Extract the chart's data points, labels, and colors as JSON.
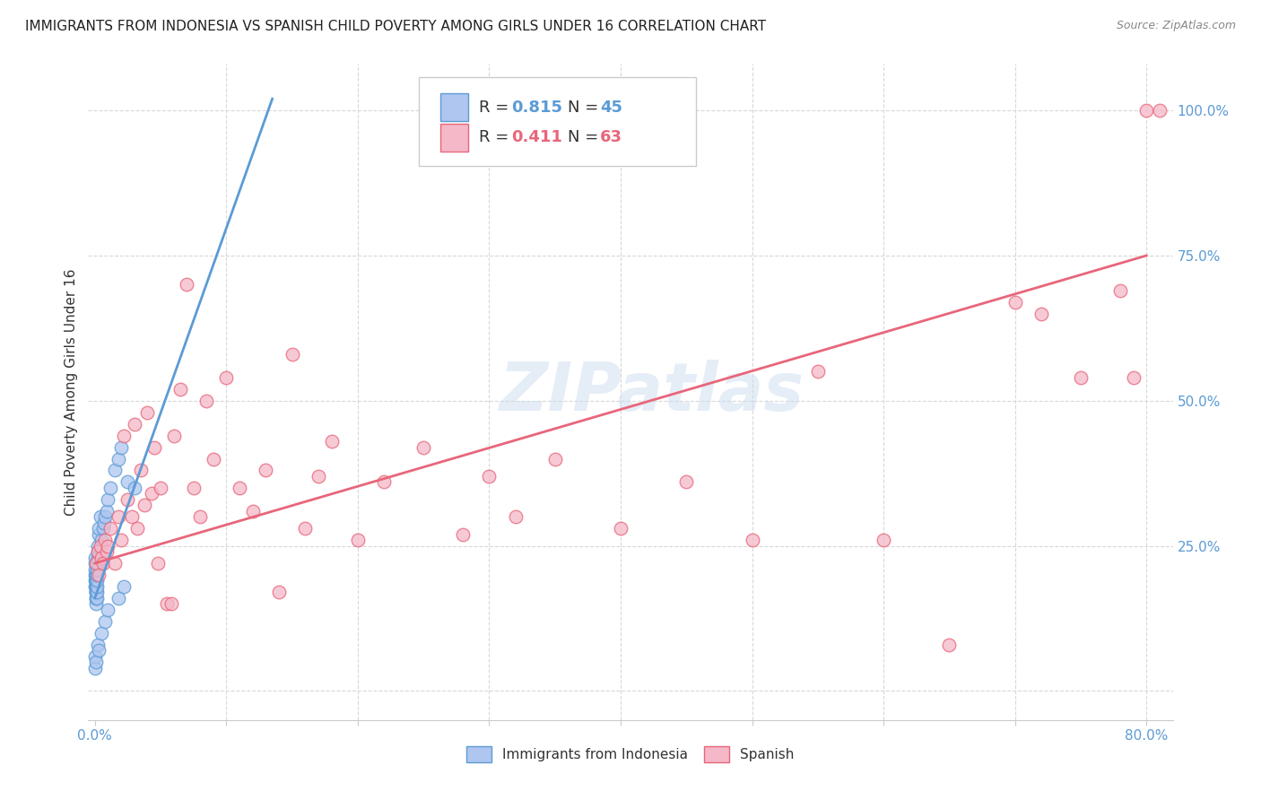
{
  "title": "IMMIGRANTS FROM INDONESIA VS SPANISH CHILD POVERTY AMONG GIRLS UNDER 16 CORRELATION CHART",
  "source": "Source: ZipAtlas.com",
  "ylabel": "Child Poverty Among Girls Under 16",
  "xlim": [
    -0.005,
    0.82
  ],
  "ylim": [
    -0.05,
    1.08
  ],
  "xticks": [
    0.0,
    0.1,
    0.2,
    0.3,
    0.4,
    0.5,
    0.6,
    0.7,
    0.8
  ],
  "xticklabels": [
    "0.0%",
    "",
    "",
    "",
    "",
    "",
    "",
    "",
    "80.0%"
  ],
  "yticks": [
    0.0,
    0.25,
    0.5,
    0.75,
    1.0
  ],
  "yticklabels": [
    "",
    "25.0%",
    "50.0%",
    "75.0%",
    "100.0%"
  ],
  "watermark": "ZIPatlas",
  "blue_scatter_x": [
    0.0002,
    0.0003,
    0.0004,
    0.0004,
    0.0005,
    0.0005,
    0.0006,
    0.0006,
    0.0007,
    0.0007,
    0.0008,
    0.0008,
    0.0009,
    0.0009,
    0.001,
    0.001,
    0.001,
    0.001,
    0.001,
    0.001,
    0.0012,
    0.0013,
    0.0014,
    0.0015,
    0.0016,
    0.0018,
    0.002,
    0.002,
    0.0022,
    0.0025,
    0.003,
    0.003,
    0.004,
    0.005,
    0.006,
    0.007,
    0.008,
    0.009,
    0.01,
    0.012,
    0.015,
    0.018,
    0.02,
    0.025,
    0.03
  ],
  "blue_scatter_y": [
    0.18,
    0.19,
    0.2,
    0.21,
    0.22,
    0.23,
    0.17,
    0.18,
    0.19,
    0.2,
    0.16,
    0.17,
    0.18,
    0.19,
    0.15,
    0.16,
    0.17,
    0.18,
    0.19,
    0.2,
    0.16,
    0.17,
    0.18,
    0.19,
    0.2,
    0.21,
    0.22,
    0.23,
    0.24,
    0.25,
    0.27,
    0.28,
    0.3,
    0.26,
    0.28,
    0.29,
    0.3,
    0.31,
    0.33,
    0.35,
    0.38,
    0.4,
    0.42,
    0.36,
    0.35
  ],
  "blue_scatter_x2": [
    0.0002,
    0.0003,
    0.001,
    0.002,
    0.003,
    0.005,
    0.008,
    0.01,
    0.018,
    0.022
  ],
  "blue_scatter_y2": [
    0.04,
    0.06,
    0.05,
    0.08,
    0.07,
    0.1,
    0.12,
    0.14,
    0.16,
    0.18
  ],
  "pink_scatter_x": [
    0.001,
    0.002,
    0.003,
    0.004,
    0.005,
    0.006,
    0.008,
    0.009,
    0.01,
    0.012,
    0.015,
    0.018,
    0.02,
    0.022,
    0.025,
    0.028,
    0.03,
    0.032,
    0.035,
    0.038,
    0.04,
    0.043,
    0.045,
    0.048,
    0.05,
    0.055,
    0.058,
    0.06,
    0.065,
    0.07,
    0.075,
    0.08,
    0.085,
    0.09,
    0.1,
    0.11,
    0.12,
    0.13,
    0.14,
    0.15,
    0.16,
    0.17,
    0.18,
    0.2,
    0.22,
    0.25,
    0.28,
    0.3,
    0.32,
    0.35,
    0.4,
    0.45,
    0.5,
    0.55,
    0.6,
    0.65,
    0.7,
    0.72,
    0.75,
    0.78,
    0.79,
    0.8,
    0.81
  ],
  "pink_scatter_y": [
    0.22,
    0.24,
    0.2,
    0.25,
    0.23,
    0.22,
    0.26,
    0.24,
    0.25,
    0.28,
    0.22,
    0.3,
    0.26,
    0.44,
    0.33,
    0.3,
    0.46,
    0.28,
    0.38,
    0.32,
    0.48,
    0.34,
    0.42,
    0.22,
    0.35,
    0.15,
    0.15,
    0.44,
    0.52,
    0.7,
    0.35,
    0.3,
    0.5,
    0.4,
    0.54,
    0.35,
    0.31,
    0.38,
    0.17,
    0.58,
    0.28,
    0.37,
    0.43,
    0.26,
    0.36,
    0.42,
    0.27,
    0.37,
    0.3,
    0.4,
    0.28,
    0.36,
    0.26,
    0.55,
    0.26,
    0.08,
    0.67,
    0.65,
    0.54,
    0.69,
    0.54,
    1.0,
    1.0
  ],
  "blue_line_x": [
    0.0,
    0.135
  ],
  "blue_line_y": [
    0.16,
    1.02
  ],
  "pink_line_x": [
    0.0,
    0.8
  ],
  "pink_line_y": [
    0.22,
    0.75
  ],
  "blue_color": "#5b9bd5",
  "pink_color": "#e8667a",
  "blue_scatter_color": "#aec6f0",
  "pink_scatter_color": "#f4b8c8",
  "grid_color": "#d8d8d8",
  "background_color": "#ffffff",
  "title_fontsize": 11,
  "axis_label_fontsize": 11,
  "tick_fontsize": 11,
  "legend_fontsize": 13
}
